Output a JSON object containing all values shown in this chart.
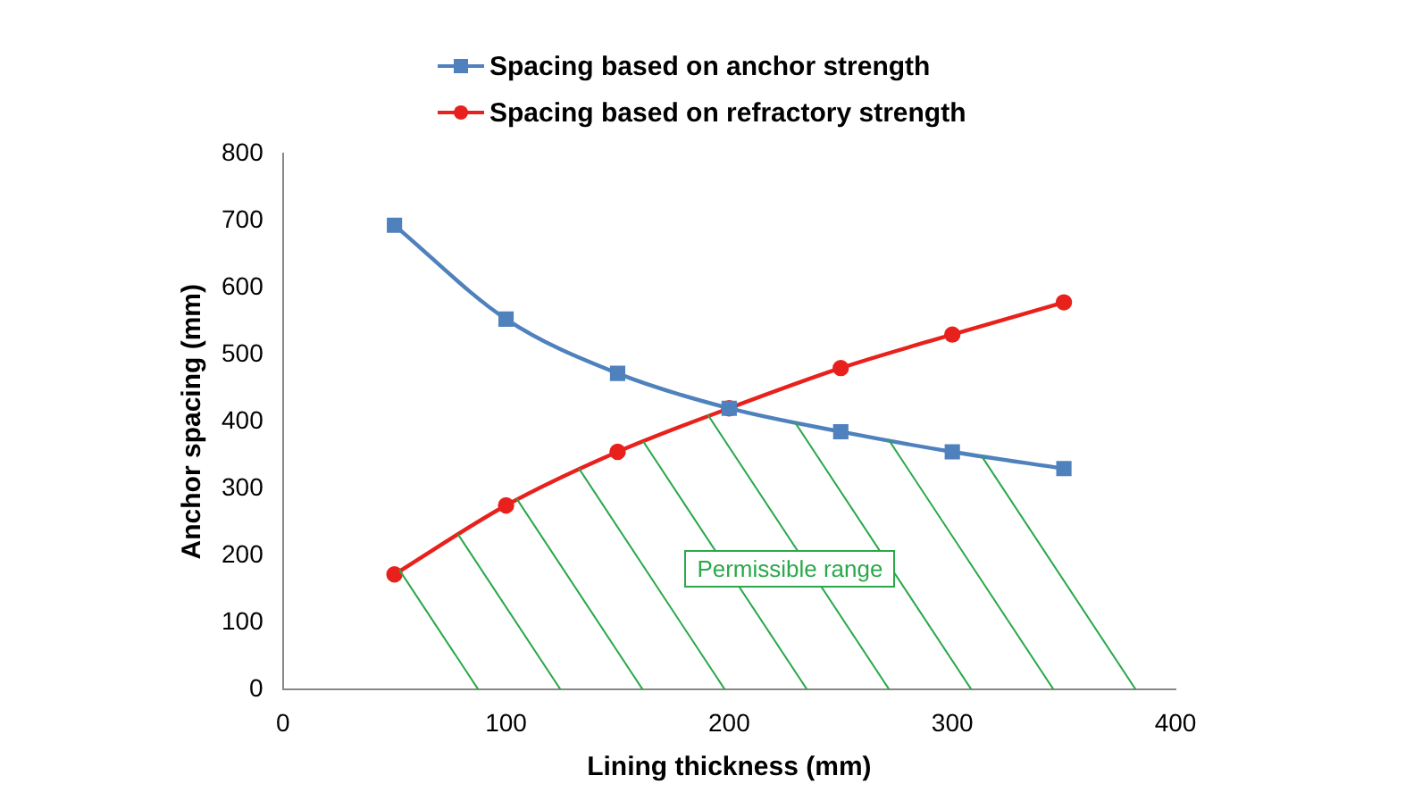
{
  "chart_data": {
    "type": "line",
    "xlabel": "Lining thickness (mm)",
    "ylabel": "Anchor spacing (mm)",
    "x": [
      50,
      100,
      150,
      200,
      250,
      300,
      350
    ],
    "series": [
      {
        "name": "Spacing based on anchor strength",
        "color": "#4f81bd",
        "marker": "square",
        "values": [
          693,
          553,
          472,
          420,
          385,
          355,
          330
        ]
      },
      {
        "name": "Spacing based on refractory strength",
        "color": "#e8211c",
        "marker": "circle",
        "values": [
          172,
          275,
          355,
          420,
          480,
          530,
          578
        ]
      }
    ],
    "xlim": [
      0,
      400
    ],
    "xticks": [
      0,
      100,
      200,
      300,
      400
    ],
    "ylim": [
      0,
      800
    ],
    "yticks": [
      0,
      100,
      200,
      300,
      400,
      500,
      600,
      700,
      800
    ],
    "grid": false,
    "legend": "top",
    "line_style": "solid",
    "annotations": [
      "Permissible range"
    ]
  }
}
